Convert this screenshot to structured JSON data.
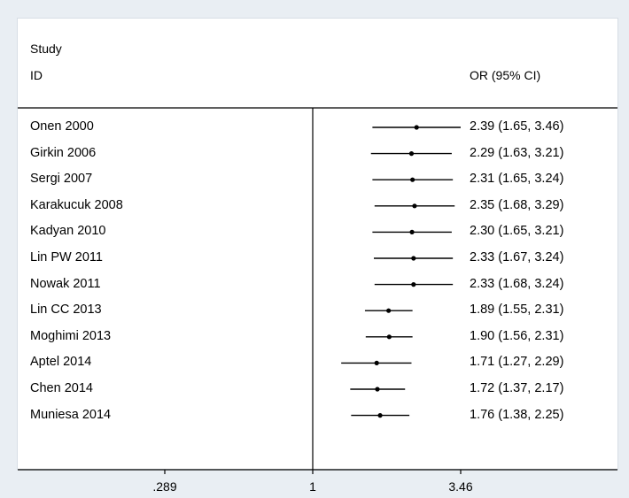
{
  "header": {
    "study_label": "Study",
    "id_label": "ID",
    "effect_label": "OR (95% CI)"
  },
  "chart_data": {
    "type": "forest",
    "xscale": "log",
    "null_value": 1,
    "x_ticks": [
      {
        "value": 0.289,
        "label": ".289"
      },
      {
        "value": 1,
        "label": "1"
      },
      {
        "value": 3.46,
        "label": "3.46"
      }
    ],
    "xlim": [
      0.289,
      3.46
    ],
    "studies": [
      {
        "id": "Onen 2000",
        "or": 2.39,
        "lo": 1.65,
        "hi": 3.46,
        "text": "2.39 (1.65, 3.46)"
      },
      {
        "id": "Girkin 2006",
        "or": 2.29,
        "lo": 1.63,
        "hi": 3.21,
        "text": "2.29 (1.63, 3.21)"
      },
      {
        "id": "Sergi 2007",
        "or": 2.31,
        "lo": 1.65,
        "hi": 3.24,
        "text": "2.31 (1.65, 3.24)"
      },
      {
        "id": "Karakucuk 2008",
        "or": 2.35,
        "lo": 1.68,
        "hi": 3.29,
        "text": "2.35 (1.68, 3.29)"
      },
      {
        "id": "Kadyan 2010",
        "or": 2.3,
        "lo": 1.65,
        "hi": 3.21,
        "text": "2.30 (1.65, 3.21)"
      },
      {
        "id": "Lin PW 2011",
        "or": 2.33,
        "lo": 1.67,
        "hi": 3.24,
        "text": "2.33 (1.67, 3.24)"
      },
      {
        "id": "Nowak 2011",
        "or": 2.33,
        "lo": 1.68,
        "hi": 3.24,
        "text": "2.33 (1.68, 3.24)"
      },
      {
        "id": "Lin CC 2013",
        "or": 1.89,
        "lo": 1.55,
        "hi": 2.31,
        "text": "1.89 (1.55, 2.31)"
      },
      {
        "id": "Moghimi 2013",
        "or": 1.9,
        "lo": 1.56,
        "hi": 2.31,
        "text": "1.90 (1.56, 2.31)"
      },
      {
        "id": "Aptel 2014",
        "or": 1.71,
        "lo": 1.27,
        "hi": 2.29,
        "text": "1.71 (1.27, 2.29)"
      },
      {
        "id": "Chen 2014",
        "or": 1.72,
        "lo": 1.37,
        "hi": 2.17,
        "text": "1.72 (1.37, 2.17)"
      },
      {
        "id": "Muniesa 2014",
        "or": 1.76,
        "lo": 1.38,
        "hi": 2.25,
        "text": "1.76 (1.38, 2.25)"
      }
    ]
  }
}
